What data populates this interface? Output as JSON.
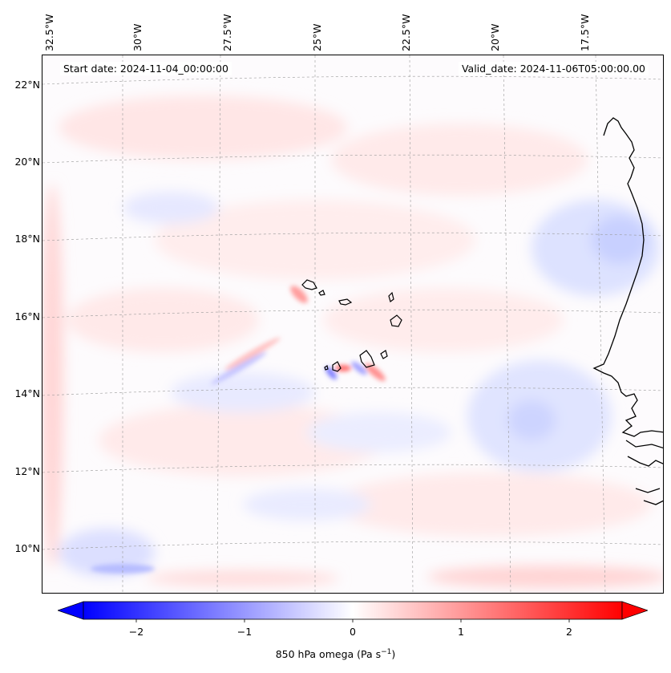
{
  "header": {
    "start_date": "Start date: 2024-11-04_00:00:00",
    "valid_date": "Valid_date: 2024-11-06T05:00:00.00"
  },
  "map": {
    "longitude_labels": [
      "32.5°W",
      "30°W",
      "27.5°W",
      "25°W",
      "22.5°W",
      "20°W",
      "17.5°W"
    ],
    "latitude_labels": [
      "22°N",
      "20°N",
      "18°N",
      "16°N",
      "14°N",
      "12°N",
      "10°N"
    ],
    "gridlines": true,
    "coastline_color": "#000000",
    "region": "Cape Verde Islands and West African coast"
  },
  "colorbar": {
    "label_main": "850 hPa omega (Pa s",
    "label_sup": "−1",
    "label_end": ")",
    "tick_labels": [
      "−2",
      "−1",
      "0",
      "1",
      "2"
    ],
    "range": [
      -2.6,
      2.6
    ],
    "colormap": "bwr",
    "low_color": "#0000ff",
    "mid_color": "#ffffff",
    "high_color": "#ff0000",
    "extend": "both"
  }
}
